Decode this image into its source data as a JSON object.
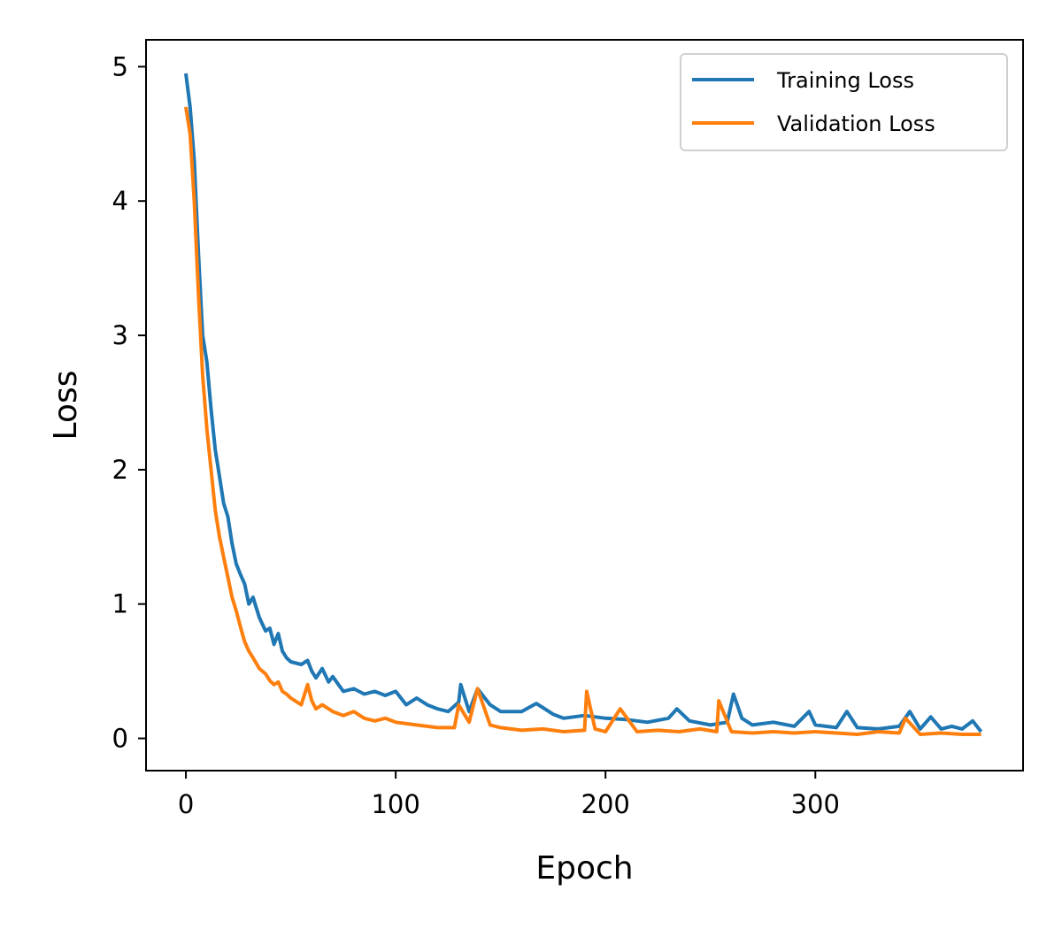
{
  "chart_data": {
    "type": "line",
    "title": "",
    "xlabel": "Epoch",
    "ylabel": "Loss",
    "xlim": [
      -19,
      399
    ],
    "ylim": [
      -0.24,
      5.2
    ],
    "xticks": [
      0,
      100,
      200,
      300
    ],
    "xtick_labels": [
      "0",
      "100",
      "200",
      "300"
    ],
    "yticks": [
      0,
      1,
      2,
      3,
      4,
      5
    ],
    "ytick_labels": [
      "0",
      "1",
      "2",
      "3",
      "4",
      "5"
    ],
    "grid": false,
    "legend_position": "top-right",
    "series": [
      {
        "name": "Training Loss",
        "color": "#1f77b4",
        "x": [
          0,
          2,
          4,
          6,
          8,
          10,
          12,
          14,
          16,
          18,
          20,
          22,
          24,
          26,
          28,
          30,
          32,
          35,
          38,
          40,
          42,
          44,
          46,
          48,
          50,
          55,
          58,
          60,
          62,
          65,
          68,
          70,
          75,
          80,
          85,
          90,
          95,
          100,
          105,
          110,
          115,
          120,
          125,
          130,
          131,
          135,
          139,
          145,
          150,
          160,
          167,
          175,
          180,
          190,
          200,
          210,
          220,
          230,
          234,
          240,
          250,
          258,
          261,
          265,
          270,
          280,
          290,
          297,
          300,
          310,
          315,
          320,
          330,
          340,
          345,
          350,
          355,
          360,
          365,
          370,
          375,
          379
        ],
        "values": [
          4.95,
          4.7,
          4.3,
          3.6,
          3.0,
          2.8,
          2.45,
          2.15,
          1.95,
          1.75,
          1.65,
          1.45,
          1.3,
          1.22,
          1.15,
          1.0,
          1.05,
          0.9,
          0.8,
          0.82,
          0.7,
          0.78,
          0.65,
          0.6,
          0.57,
          0.55,
          0.58,
          0.5,
          0.45,
          0.52,
          0.42,
          0.46,
          0.35,
          0.37,
          0.33,
          0.35,
          0.32,
          0.35,
          0.25,
          0.3,
          0.25,
          0.22,
          0.2,
          0.27,
          0.4,
          0.2,
          0.37,
          0.25,
          0.2,
          0.2,
          0.26,
          0.18,
          0.15,
          0.17,
          0.15,
          0.14,
          0.12,
          0.15,
          0.22,
          0.13,
          0.1,
          0.12,
          0.33,
          0.15,
          0.1,
          0.12,
          0.09,
          0.2,
          0.1,
          0.08,
          0.2,
          0.08,
          0.07,
          0.09,
          0.2,
          0.07,
          0.16,
          0.07,
          0.09,
          0.07,
          0.13,
          0.05
        ]
      },
      {
        "name": "Validation Loss",
        "color": "#ff7f0e",
        "x": [
          0,
          2,
          4,
          6,
          8,
          10,
          12,
          14,
          16,
          18,
          20,
          22,
          24,
          26,
          28,
          30,
          32,
          35,
          38,
          40,
          42,
          44,
          46,
          48,
          50,
          55,
          58,
          60,
          62,
          65,
          70,
          75,
          80,
          85,
          90,
          95,
          100,
          110,
          120,
          128,
          130,
          135,
          139,
          145,
          150,
          160,
          170,
          180,
          190,
          191,
          195,
          200,
          207,
          215,
          225,
          235,
          245,
          253,
          254,
          260,
          270,
          280,
          290,
          300,
          310,
          320,
          330,
          340,
          343,
          350,
          360,
          370,
          379
        ],
        "values": [
          4.7,
          4.5,
          4.0,
          3.3,
          2.7,
          2.3,
          2.0,
          1.7,
          1.5,
          1.35,
          1.2,
          1.05,
          0.95,
          0.83,
          0.72,
          0.65,
          0.6,
          0.52,
          0.48,
          0.43,
          0.4,
          0.42,
          0.35,
          0.33,
          0.3,
          0.25,
          0.4,
          0.28,
          0.22,
          0.25,
          0.2,
          0.17,
          0.2,
          0.15,
          0.13,
          0.15,
          0.12,
          0.1,
          0.08,
          0.08,
          0.25,
          0.12,
          0.37,
          0.1,
          0.08,
          0.06,
          0.07,
          0.05,
          0.06,
          0.35,
          0.07,
          0.05,
          0.22,
          0.05,
          0.06,
          0.05,
          0.07,
          0.05,
          0.28,
          0.05,
          0.04,
          0.05,
          0.04,
          0.05,
          0.04,
          0.03,
          0.05,
          0.04,
          0.15,
          0.03,
          0.04,
          0.03,
          0.03
        ]
      }
    ]
  }
}
